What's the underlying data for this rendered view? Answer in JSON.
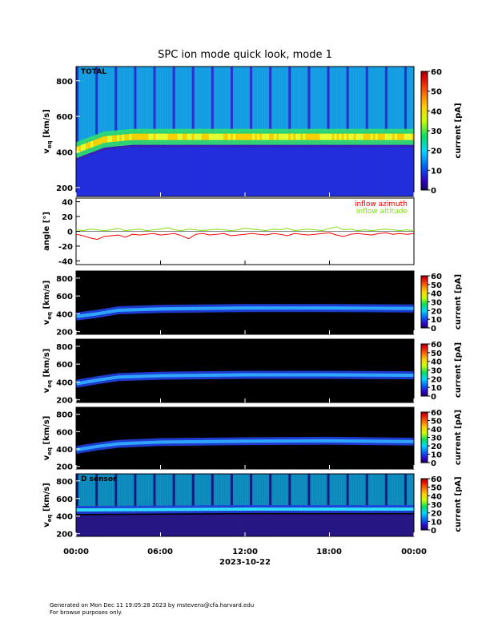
{
  "title": "SPC ion mode quick look, mode 1",
  "footer": {
    "generated": "Generated on Mon Dec 11 19:05:28 2023 by mstevens@cfa.harvard.edu",
    "note": "For browse purposes only."
  },
  "chart_data": [
    {
      "type": "heatmap",
      "label": "TOTAL",
      "ylabel_main": "v",
      "ylabel_sub": "eq",
      "ylabel_unit": " [km/s]",
      "yticks": [
        200,
        400,
        600,
        800
      ],
      "ylim": [
        150,
        880
      ],
      "colorbar": {
        "label": "current [pA]",
        "ticks": [
          0,
          10,
          20,
          30,
          40,
          50,
          60
        ],
        "range": [
          0,
          60
        ]
      },
      "background": "#3a1fb8",
      "beam": [
        {
          "t": 0,
          "v": 410
        },
        {
          "t": 1,
          "v": 440
        },
        {
          "t": 2,
          "v": 470
        },
        {
          "t": 4,
          "v": 485
        },
        {
          "t": 8,
          "v": 485
        },
        {
          "t": 12,
          "v": 485
        },
        {
          "t": 18,
          "v": 485
        },
        {
          "t": 24,
          "v": 485
        }
      ]
    },
    {
      "type": "line",
      "ylabel": "angle [°]",
      "yticks": [
        -40,
        -20,
        0,
        20,
        40
      ],
      "ylim": [
        -45,
        45
      ],
      "series": [
        {
          "name": "inflow azimuth",
          "color": "#ff0000",
          "x": [
            0,
            0.5,
            1,
            1.5,
            2,
            2.5,
            3,
            3.5,
            4,
            4.5,
            5,
            5.5,
            6,
            6.5,
            7,
            7.5,
            8,
            8.5,
            9,
            9.5,
            10,
            10.5,
            11,
            11.5,
            12,
            12.5,
            13,
            13.5,
            14,
            14.5,
            15,
            15.5,
            16,
            16.5,
            17,
            17.5,
            18,
            18.5,
            19,
            19.5,
            20,
            20.5,
            21,
            21.5,
            22,
            22.5,
            23,
            23.5,
            24
          ],
          "y": [
            -4,
            -6,
            -9,
            -11,
            -7,
            -6,
            -5,
            -8,
            -4,
            -5,
            -4,
            -3,
            -5,
            -4,
            -3,
            -6,
            -10,
            -4,
            -3,
            -5,
            -4,
            -3,
            -6,
            -5,
            -4,
            -3,
            -4,
            -5,
            -3,
            -4,
            -6,
            -3,
            -4,
            -5,
            -4,
            -3,
            -2,
            -5,
            -7,
            -4,
            -3,
            -4,
            -5,
            -3,
            -2,
            -4,
            -3,
            -4,
            -3
          ]
        },
        {
          "name": "inflow altitude",
          "color": "#80e010",
          "x": [
            0,
            0.5,
            1,
            1.5,
            2,
            2.5,
            3,
            3.5,
            4,
            4.5,
            5,
            5.5,
            6,
            6.5,
            7,
            7.5,
            8,
            8.5,
            9,
            9.5,
            10,
            10.5,
            11,
            11.5,
            12,
            12.5,
            13,
            13.5,
            14,
            14.5,
            15,
            15.5,
            16,
            16.5,
            17,
            17.5,
            18,
            18.5,
            19,
            19.5,
            20,
            20.5,
            21,
            21.5,
            22,
            22.5,
            23,
            23.5,
            24
          ],
          "y": [
            2,
            1,
            3,
            2,
            1,
            2,
            4,
            1,
            2,
            3,
            1,
            2,
            3,
            5,
            2,
            1,
            3,
            2,
            1,
            2,
            3,
            2,
            1,
            2,
            4,
            3,
            2,
            1,
            3,
            2,
            4,
            1,
            2,
            3,
            2,
            1,
            4,
            6,
            2,
            3,
            1,
            2,
            1,
            2,
            3,
            2,
            1,
            2,
            1
          ]
        }
      ]
    },
    {
      "type": "heatmap",
      "label": "",
      "ylabel_main": "v",
      "ylabel_sub": "eq",
      "ylabel_unit": " [km/s]",
      "yticks": [
        200,
        400,
        600,
        800
      ],
      "ylim": [
        170,
        880
      ],
      "colorbar": {
        "label": "current [pA]",
        "ticks": [
          0,
          10,
          20,
          30,
          40,
          50,
          60
        ],
        "range": [
          0,
          60
        ]
      },
      "background": "#000000",
      "beam": [
        {
          "t": 0,
          "v": 370
        },
        {
          "t": 1.5,
          "v": 400
        },
        {
          "t": 3,
          "v": 440
        },
        {
          "t": 6,
          "v": 455
        },
        {
          "t": 12,
          "v": 465
        },
        {
          "t": 18,
          "v": 465
        },
        {
          "t": 24,
          "v": 460
        }
      ]
    },
    {
      "type": "heatmap",
      "label": "",
      "ylabel_main": "v",
      "ylabel_sub": "eq",
      "ylabel_unit": " [km/s]",
      "yticks": [
        200,
        400,
        600,
        800
      ],
      "ylim": [
        170,
        880
      ],
      "colorbar": {
        "label": "current [pA]",
        "ticks": [
          0,
          10,
          20,
          30,
          40,
          50,
          60
        ],
        "range": [
          0,
          60
        ]
      },
      "background": "#000000",
      "beam": [
        {
          "t": 0,
          "v": 380
        },
        {
          "t": 1.5,
          "v": 420
        },
        {
          "t": 3,
          "v": 455
        },
        {
          "t": 6,
          "v": 470
        },
        {
          "t": 12,
          "v": 480
        },
        {
          "t": 18,
          "v": 480
        },
        {
          "t": 24,
          "v": 475
        }
      ]
    },
    {
      "type": "heatmap",
      "label": "",
      "ylabel_main": "v",
      "ylabel_sub": "eq",
      "ylabel_unit": " [km/s]",
      "yticks": [
        200,
        400,
        600,
        800
      ],
      "ylim": [
        170,
        880
      ],
      "colorbar": {
        "label": "current [pA]",
        "ticks": [
          0,
          10,
          20,
          30,
          40,
          50,
          60
        ],
        "range": [
          0,
          60
        ]
      },
      "background": "#000000",
      "beam": [
        {
          "t": 0,
          "v": 390
        },
        {
          "t": 1.5,
          "v": 430
        },
        {
          "t": 3,
          "v": 460
        },
        {
          "t": 6,
          "v": 480
        },
        {
          "t": 12,
          "v": 490
        },
        {
          "t": 18,
          "v": 495
        },
        {
          "t": 24,
          "v": 485
        }
      ]
    },
    {
      "type": "heatmap",
      "label": "D sensor",
      "ylabel_main": "v",
      "ylabel_sub": "eq",
      "ylabel_unit": " [km/s]",
      "yticks": [
        200,
        400,
        600,
        800
      ],
      "ylim": [
        170,
        880
      ],
      "colorbar": {
        "label": "current [pA]",
        "ticks": [
          0,
          10,
          20,
          30,
          40,
          50,
          60
        ],
        "range": [
          0,
          60
        ]
      },
      "background": "#000000",
      "beam": [
        {
          "t": 0,
          "v": 470
        },
        {
          "t": 6,
          "v": 475
        },
        {
          "t": 12,
          "v": 480
        },
        {
          "t": 18,
          "v": 480
        },
        {
          "t": 24,
          "v": 480
        }
      ]
    }
  ],
  "xaxis": {
    "ticks": [
      "00:00",
      "06:00",
      "12:00",
      "18:00",
      "00:00"
    ],
    "date": "2023-10-22"
  }
}
